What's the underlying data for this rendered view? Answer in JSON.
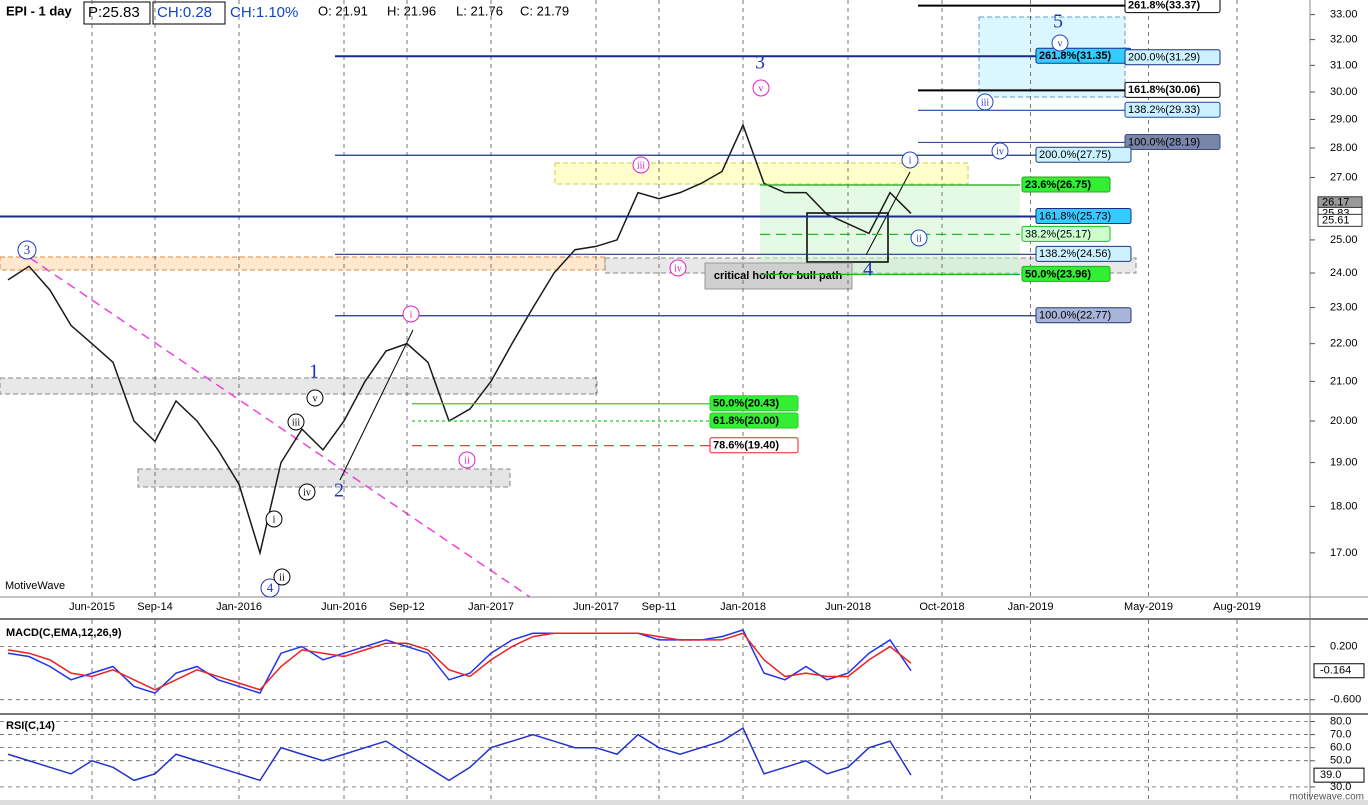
{
  "header": {
    "symbol": "EPI - 1 day",
    "price": "P:25.83",
    "change": "CH:0.28",
    "change_pct": "CH:1.10%",
    "open": "O: 21.91",
    "high": "H: 21.96",
    "low": "L: 21.76",
    "close": "C: 21.79"
  },
  "watermark": "MotiveWave",
  "footer": "motivewave.com",
  "chart_data": [
    {
      "type": "line",
      "log_scale": true,
      "categories": [
        null,
        null,
        null,
        null,
        "Jun-2015",
        null,
        null,
        "Sep-14",
        null,
        null,
        null,
        "Jan-2016",
        null,
        null,
        null,
        null,
        "Jun-2016",
        null,
        null,
        "Sep-12",
        null,
        null,
        null,
        "Jan-2017",
        null,
        null,
        null,
        null,
        "Jun-2017",
        null,
        null,
        "Sep-11",
        null,
        null,
        null,
        "Jan-2018",
        null,
        null,
        null,
        null,
        "Jun-2018",
        null,
        null,
        null,
        "Oct-2018",
        null,
        null,
        "Jan-2019",
        null,
        null,
        null,
        "May-2019",
        null,
        null,
        "Aug-2019"
      ],
      "series": [
        {
          "color": "#1a1a1a",
          "values": [
            23.8,
            24.2,
            23.5,
            22.5,
            22.0,
            21.5,
            20.0,
            19.5,
            20.5,
            20.0,
            19.3,
            18.5,
            17.0,
            19.0,
            19.8,
            19.3,
            20.0,
            21.0,
            21.8,
            22.0,
            21.5,
            20.0,
            20.3,
            21.0,
            22.0,
            23.0,
            24.0,
            24.7,
            24.8,
            25.0,
            26.5,
            26.3,
            26.5,
            26.8,
            27.2,
            28.8,
            26.8,
            26.5,
            26.5,
            25.8,
            25.5,
            25.2,
            26.5,
            25.83,
            null,
            null,
            null,
            null,
            null,
            null,
            null,
            null,
            null,
            null,
            null
          ]
        }
      ],
      "ylim": [
        16.1,
        33.6
      ],
      "yticks": [
        {
          "value": 17,
          "label": "17.00"
        },
        {
          "value": 18,
          "label": "18.00"
        },
        {
          "value": 19,
          "label": "19.00"
        },
        {
          "value": 20,
          "label": "20.00"
        },
        {
          "value": 21,
          "label": "21.00"
        },
        {
          "value": 22,
          "label": "22.00"
        },
        {
          "value": 23,
          "label": "23.00"
        },
        {
          "value": 24,
          "label": "24.00"
        },
        {
          "value": 25,
          "label": "25.00"
        },
        {
          "value": 27,
          "label": "27.00"
        },
        {
          "value": 28,
          "label": "28.00"
        },
        {
          "value": 29,
          "label": "29.00"
        },
        {
          "value": 30,
          "label": "30.00"
        },
        {
          "value": 31,
          "label": "31.00"
        },
        {
          "value": 32,
          "label": "32.00"
        },
        {
          "value": 33,
          "label": "33.00"
        }
      ],
      "grid": true,
      "price_tags": [
        {
          "value": 26.17,
          "label": "26.17",
          "color": "#9a9a9a"
        },
        {
          "value": 25.83,
          "label": "25.83",
          "color": "#ffffff"
        },
        {
          "value": 25.61,
          "label": "25.61",
          "color": "#ffffff"
        }
      ],
      "levels": [
        {
          "value": 33.37,
          "label": "261.8%(33.37)",
          "color": "#000000",
          "fill": "#ffffff",
          "dash": "solid"
        },
        {
          "value": 31.35,
          "label": "261.8%(31.35)",
          "color": "#1a2a8a",
          "fill": "#33ccff",
          "dash": "solid"
        },
        {
          "value": 31.29,
          "label": "200.0%(31.29)",
          "color": "#1a2a8a",
          "fill": "#ccf2ff",
          "dash": "none"
        },
        {
          "value": 30.06,
          "label": "161.8%(30.06)",
          "color": "#000000",
          "fill": "#ffffff",
          "dash": "solid"
        },
        {
          "value": 29.33,
          "label": "138.2%(29.33)",
          "color": "#1a4aaa",
          "fill": "#ccf2ff",
          "dash": "solid"
        },
        {
          "value": 28.19,
          "label": "100.0%(28.19)",
          "color": "#3a4a8a",
          "fill": "#7a86a8",
          "dash": "solid"
        },
        {
          "value": 27.75,
          "label": "200.0%(27.75)",
          "color": "#1a3a7a",
          "fill": "#ccf2ff",
          "dash": "solid"
        },
        {
          "value": 26.75,
          "label": "23.6%(26.75)",
          "color": "#22aa22",
          "fill": "#33ee33",
          "dash": "solid"
        },
        {
          "value": 25.73,
          "label": "161.8%(25.73)",
          "color": "#1a2a8a",
          "fill": "#33ccff",
          "dash": "solid"
        },
        {
          "value": 25.17,
          "label": "38.2%(25.17)",
          "color": "#22bb22",
          "fill": "#ccffcc",
          "dash": "dashed"
        },
        {
          "value": 24.56,
          "label": "138.2%(24.56)",
          "color": "#1a3a7a",
          "fill": "#ccf2ff",
          "dash": "solid"
        },
        {
          "value": 23.96,
          "label": "50.0%(23.96)",
          "color": "#22aa22",
          "fill": "#33ee33",
          "dash": "solid"
        },
        {
          "value": 22.77,
          "label": "100.0%(22.77)",
          "color": "#1a3a7a",
          "fill": "#a8b4d8",
          "dash": "solid"
        },
        {
          "value": 20.43,
          "label": "50.0%(20.43)",
          "color": "#33cc33",
          "fill": "#33ee33",
          "dash": "solid"
        },
        {
          "value": 20.0,
          "label": "61.8%(20.00)",
          "color": "#22cc22",
          "fill": "#33ee33",
          "dash": "dotted"
        },
        {
          "value": 19.4,
          "label": "78.6%(19.40)",
          "color": "#ee2222",
          "fill": "#ffffff",
          "dash": "dashed"
        }
      ],
      "waves": [
        {
          "label": "3",
          "color": "#2233bb",
          "circle": true
        },
        {
          "label": "1",
          "color": "#2233bb",
          "circle": false
        },
        {
          "label": "2",
          "color": "#2233bb",
          "circle": false
        },
        {
          "label": "3",
          "color": "#2233bb",
          "circle": false
        },
        {
          "label": "4",
          "color": "#2233bb",
          "circle": false
        },
        {
          "label": "5",
          "color": "#2233bb",
          "circle": false
        },
        {
          "label": "4",
          "color": "#2233bb",
          "circle": true
        },
        {
          "label": "i",
          "color": "#dd22cc",
          "circle": true
        },
        {
          "label": "ii",
          "color": "#dd22cc",
          "circle": true
        },
        {
          "label": "iii",
          "color": "#dd22cc",
          "circle": true
        },
        {
          "label": "iv",
          "color": "#dd22cc",
          "circle": true
        },
        {
          "label": "v",
          "color": "#dd22cc",
          "circle": true
        },
        {
          "label": "v",
          "color": "#000000",
          "circle": true
        },
        {
          "label": "iii",
          "color": "#000000",
          "circle": true
        },
        {
          "label": "iv",
          "color": "#000000",
          "circle": true
        },
        {
          "label": "i",
          "color": "#000000",
          "circle": true
        },
        {
          "label": "ii",
          "color": "#000000",
          "circle": true
        },
        {
          "label": "i",
          "color": "#2244cc",
          "circle": true
        },
        {
          "label": "ii",
          "color": "#2244cc",
          "circle": true
        },
        {
          "label": "iii",
          "color": "#2244cc",
          "circle": true
        },
        {
          "label": "iv",
          "color": "#2244cc",
          "circle": true
        },
        {
          "label": "v",
          "color": "#2244cc",
          "circle": true
        }
      ],
      "annotations": [
        "critical hold for bull path"
      ]
    },
    {
      "type": "line",
      "title": "MACD(C,EMA,12,26,9)",
      "series": [
        {
          "color": "#2233ee",
          "values": [
            0.1,
            0.05,
            -0.1,
            -0.3,
            -0.2,
            -0.1,
            -0.4,
            -0.5,
            -0.2,
            -0.1,
            -0.3,
            -0.4,
            -0.5,
            0.1,
            0.2,
            0.0,
            0.1,
            0.2,
            0.3,
            0.2,
            0.1,
            -0.3,
            -0.2,
            0.1,
            0.3,
            0.4,
            0.4,
            0.4,
            0.4,
            0.4,
            0.4,
            0.3,
            0.3,
            0.3,
            0.35,
            0.45,
            -0.2,
            -0.3,
            -0.1,
            -0.3,
            -0.2,
            0.1,
            0.3,
            -0.164,
            null,
            null,
            null,
            null,
            null,
            null,
            null,
            null,
            null,
            null,
            null
          ]
        },
        {
          "color": "#ee2222",
          "values": [
            0.15,
            0.1,
            0.0,
            -0.2,
            -0.25,
            -0.15,
            -0.3,
            -0.45,
            -0.3,
            -0.15,
            -0.25,
            -0.35,
            -0.45,
            -0.1,
            0.15,
            0.1,
            0.05,
            0.15,
            0.25,
            0.25,
            0.15,
            -0.15,
            -0.25,
            0.0,
            0.2,
            0.35,
            0.4,
            0.4,
            0.4,
            0.4,
            0.4,
            0.35,
            0.3,
            0.3,
            0.3,
            0.4,
            0.0,
            -0.25,
            -0.2,
            -0.25,
            -0.25,
            0.0,
            0.2,
            -0.05,
            null,
            null,
            null,
            null,
            null,
            null,
            null,
            null,
            null,
            null,
            null
          ]
        }
      ],
      "ylim": [
        -0.8,
        0.6
      ],
      "yticks": [
        {
          "value": 0.2,
          "label": "0.200"
        },
        {
          "value": -0.6,
          "label": "-0.600"
        }
      ],
      "current": {
        "value": -0.164,
        "label": "-0.164"
      },
      "grid": true
    },
    {
      "type": "line",
      "title": "RSI(C,14)",
      "series": [
        {
          "color": "#2233cc",
          "values": [
            55,
            50,
            45,
            40,
            50,
            45,
            35,
            40,
            55,
            50,
            45,
            40,
            35,
            60,
            55,
            50,
            55,
            60,
            65,
            55,
            45,
            35,
            45,
            60,
            65,
            70,
            65,
            60,
            60,
            55,
            70,
            60,
            55,
            60,
            65,
            75,
            40,
            45,
            50,
            40,
            45,
            60,
            65,
            39,
            null,
            null,
            null,
            null,
            null,
            null,
            null,
            null,
            null,
            null,
            null
          ]
        }
      ],
      "ylim": [
        20,
        85
      ],
      "yticks": [
        {
          "value": 80,
          "label": "80.0"
        },
        {
          "value": 70,
          "label": "70.0"
        },
        {
          "value": 60,
          "label": "60.0"
        },
        {
          "value": 50,
          "label": "50.0"
        },
        {
          "value": 30,
          "label": "30.0"
        }
      ],
      "current": {
        "value": 39,
        "label": "39.0"
      },
      "grid": true
    }
  ]
}
